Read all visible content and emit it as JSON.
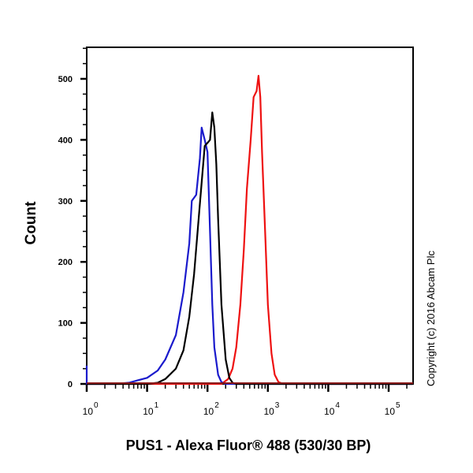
{
  "chart_data": {
    "type": "line",
    "title": "",
    "xlabel": "PUS1 - Alexa Fluor® 488 (530/30 BP)",
    "ylabel": "Count",
    "xscale": "log",
    "xlim": [
      0.6,
      250000
    ],
    "ylim": [
      0,
      560
    ],
    "x_ticks": [
      1,
      10,
      100,
      1000,
      10000,
      100000
    ],
    "x_tick_labels": [
      "10^0",
      "10^1",
      "10^2",
      "10^3",
      "10^4",
      "10^5"
    ],
    "y_ticks": [
      0,
      100,
      200,
      300,
      400,
      500
    ],
    "y_tick_labels": [
      "0",
      "100",
      "200",
      "300",
      "400",
      "500"
    ],
    "grid": false,
    "legend": null,
    "annotation": "Copyright (c) 2016 Abcam Plc",
    "series": [
      {
        "name": "blue histogram",
        "color": "#1a1acc",
        "points": [
          [
            0.6,
            30
          ],
          [
            0.7,
            0
          ],
          [
            1,
            0
          ],
          [
            3,
            0
          ],
          [
            5,
            2
          ],
          [
            7,
            6
          ],
          [
            10,
            10
          ],
          [
            15,
            22
          ],
          [
            20,
            40
          ],
          [
            30,
            80
          ],
          [
            40,
            150
          ],
          [
            50,
            230
          ],
          [
            55,
            300
          ],
          [
            65,
            310
          ],
          [
            75,
            370
          ],
          [
            80,
            420
          ],
          [
            90,
            400
          ],
          [
            100,
            380
          ],
          [
            110,
            250
          ],
          [
            120,
            130
          ],
          [
            130,
            60
          ],
          [
            150,
            15
          ],
          [
            170,
            3
          ],
          [
            200,
            0
          ],
          [
            250000,
            0
          ]
        ]
      },
      {
        "name": "black histogram",
        "color": "#000000",
        "points": [
          [
            0.6,
            0
          ],
          [
            10,
            0
          ],
          [
            15,
            2
          ],
          [
            20,
            8
          ],
          [
            30,
            25
          ],
          [
            40,
            55
          ],
          [
            50,
            110
          ],
          [
            60,
            180
          ],
          [
            70,
            260
          ],
          [
            80,
            330
          ],
          [
            90,
            390
          ],
          [
            100,
            395
          ],
          [
            110,
            400
          ],
          [
            120,
            445
          ],
          [
            130,
            420
          ],
          [
            140,
            360
          ],
          [
            150,
            270
          ],
          [
            170,
            130
          ],
          [
            200,
            40
          ],
          [
            230,
            10
          ],
          [
            260,
            2
          ],
          [
            300,
            0
          ],
          [
            250000,
            0
          ]
        ]
      },
      {
        "name": "red histogram",
        "color": "#ee1111",
        "points": [
          [
            0.6,
            0
          ],
          [
            170,
            0
          ],
          [
            220,
            8
          ],
          [
            260,
            25
          ],
          [
            300,
            60
          ],
          [
            350,
            130
          ],
          [
            400,
            220
          ],
          [
            450,
            320
          ],
          [
            520,
            400
          ],
          [
            580,
            470
          ],
          [
            650,
            480
          ],
          [
            700,
            505
          ],
          [
            750,
            470
          ],
          [
            800,
            380
          ],
          [
            900,
            250
          ],
          [
            1000,
            130
          ],
          [
            1150,
            50
          ],
          [
            1300,
            15
          ],
          [
            1500,
            3
          ],
          [
            1800,
            0
          ],
          [
            250000,
            0
          ]
        ]
      }
    ]
  },
  "labels": {
    "ylabel": "Count",
    "xlabel": "PUS1 - Alexa Fluor® 488 (530/30 BP)",
    "copyright": "Copyright (c) 2016 Abcam Plc"
  }
}
